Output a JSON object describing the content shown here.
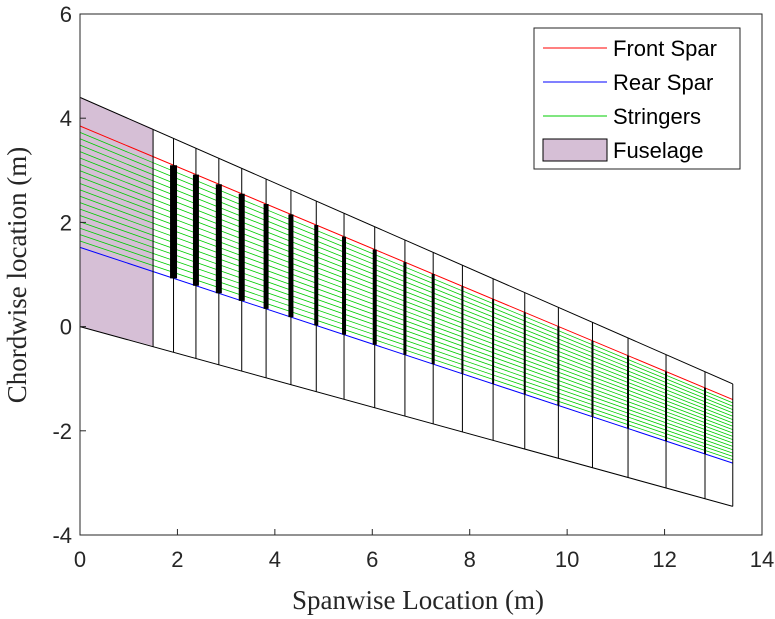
{
  "chart_data": {
    "type": "line",
    "xlabel": "Spanwise Location (m)",
    "ylabel": "Chordwise location (m)",
    "xlim": [
      0,
      14
    ],
    "ylim": [
      -4,
      6
    ],
    "x_ticks": [
      "0",
      "2",
      "4",
      "6",
      "8",
      "10",
      "12",
      "14"
    ],
    "y_ticks": [
      "-4",
      "-2",
      "0",
      "2",
      "4",
      "6"
    ],
    "legend_position": "top-right",
    "grid": false,
    "colors": {
      "front_spar": "#ff0000",
      "rear_spar": "#0000ff",
      "stringers": "#00cc00",
      "fuselage_fill": "#d6bfd6",
      "outline": "#000000"
    },
    "series": [
      {
        "name": "Front Spar",
        "x": [
          0,
          13.4
        ],
        "y": [
          3.85,
          -1.4
        ]
      },
      {
        "name": "Rear Spar",
        "x": [
          0,
          13.4
        ],
        "y": [
          1.52,
          -2.62
        ]
      },
      {
        "name": "Stringers",
        "x_start": 0,
        "x_end": 13.4,
        "front_start": 3.85,
        "front_end": -1.4,
        "rear_start": 1.52,
        "rear_end": -2.62,
        "count": 18
      },
      {
        "name": "Fuselage",
        "x": [
          0,
          1.5,
          1.5,
          0
        ],
        "y": [
          4.4,
          3.8,
          -0.37,
          0
        ]
      }
    ],
    "wing_outline": {
      "leading_edge": {
        "x": [
          0,
          13.4
        ],
        "y": [
          4.4,
          -1.1
        ]
      },
      "trailing_edge": {
        "x": [
          0,
          13.4
        ],
        "y": [
          0,
          -3.45
        ]
      },
      "tip_x": 13.4
    },
    "ribs": {
      "x": [
        1.5,
        1.92,
        2.38,
        2.85,
        3.32,
        3.82,
        4.33,
        4.85,
        5.42,
        6.05,
        6.67,
        7.25,
        7.85,
        8.48,
        9.13,
        9.82,
        10.52,
        11.25,
        12.03,
        12.83,
        13.4
      ],
      "thickness": [
        1,
        7,
        6,
        6,
        6,
        5,
        5,
        4,
        4,
        4,
        3,
        3,
        2,
        2,
        2,
        2,
        2,
        2,
        2,
        2,
        1
      ]
    },
    "legend": [
      "Front Spar",
      "Rear Spar",
      "Stringers",
      "Fuselage"
    ]
  }
}
